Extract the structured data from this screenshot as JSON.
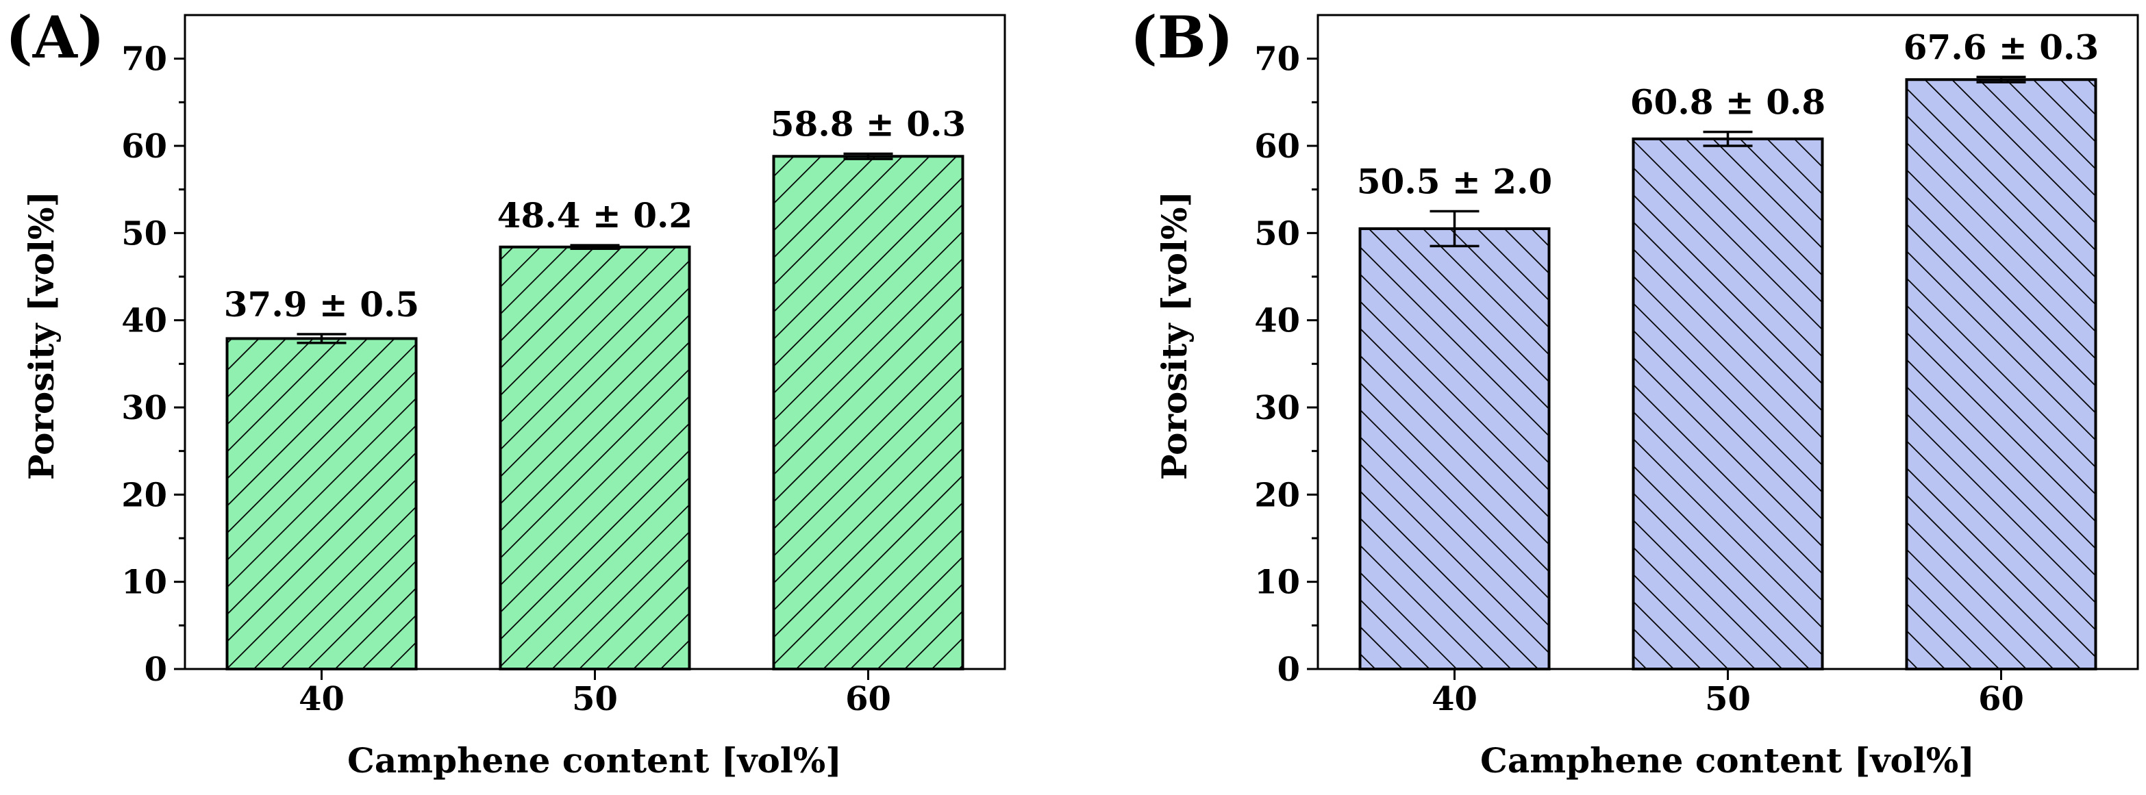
{
  "chart_data": [
    {
      "panel": "(A)",
      "type": "bar",
      "categories": [
        "40",
        "50",
        "60"
      ],
      "values": [
        37.9,
        48.4,
        58.8
      ],
      "errors": [
        0.5,
        0.2,
        0.3
      ],
      "data_labels": [
        "37.9 ± 0.5",
        "48.4 ± 0.2",
        "58.8 ± 0.3"
      ],
      "xlabel": "Camphene content [vol%]",
      "ylabel": "Porosity [vol%]",
      "ylim": [
        0,
        75
      ],
      "yticks": [
        0,
        10,
        20,
        30,
        40,
        50,
        60,
        70
      ],
      "bar_color": "#8ff0b0",
      "hatch": "forward-diagonal"
    },
    {
      "panel": "(B)",
      "type": "bar",
      "categories": [
        "40",
        "50",
        "60"
      ],
      "values": [
        50.5,
        60.8,
        67.6
      ],
      "errors": [
        2.0,
        0.8,
        0.3
      ],
      "data_labels": [
        "50.5 ± 2.0",
        "60.8 ± 0.8",
        "67.6 ± 0.3"
      ],
      "xlabel": "Camphene content [vol%]",
      "ylabel": "Porosity [vol%]",
      "ylim": [
        0,
        75
      ],
      "yticks": [
        0,
        10,
        20,
        30,
        40,
        50,
        60,
        70
      ],
      "bar_color": "#b9c4f2",
      "hatch": "backward-diagonal"
    }
  ]
}
